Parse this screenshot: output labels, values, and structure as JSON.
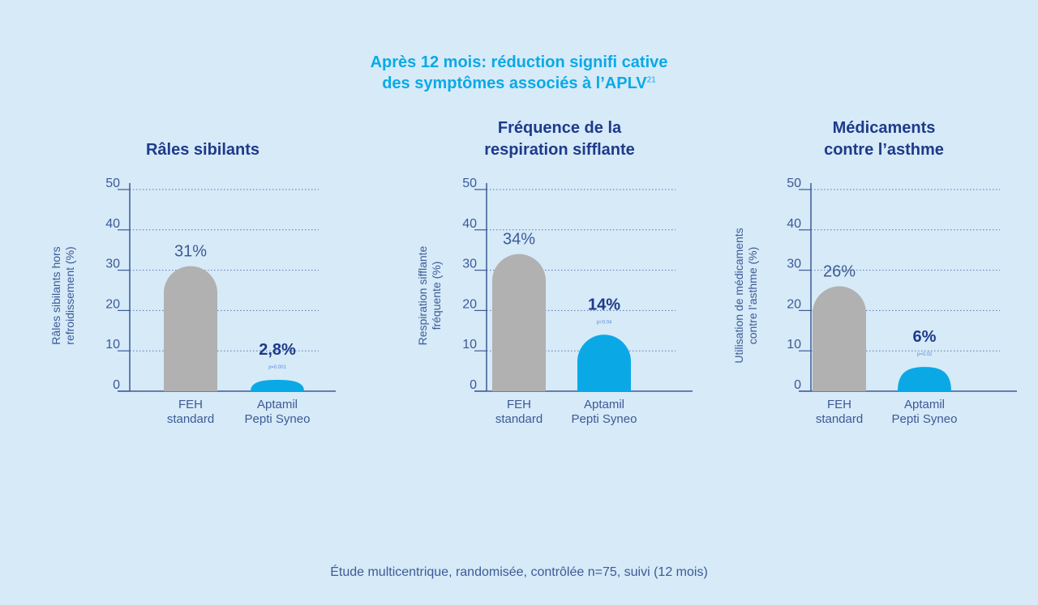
{
  "title": {
    "line1": "Après 12 mois: réduction signifi cative",
    "line2": "des symptômes associés à l’APLV",
    "superscript": "21"
  },
  "footnote": "Étude multicentrique, randomisée, contrôlée n=75, suivi (12 mois)",
  "colors": {
    "background": "#d6eaf8",
    "accent": "#0aa9e6",
    "title_dark": "#1e3a8a",
    "axis": "#3d5a96",
    "bar_standard": "#b1b1b1",
    "bar_aptamil": "#0aa9e6"
  },
  "chart_data": [
    {
      "type": "bar",
      "title": [
        "Râles sibilants"
      ],
      "ylabel": [
        "Râles sibilants hors",
        "refroidissement (%)"
      ],
      "categories": [
        [
          "FEH",
          "standard"
        ],
        [
          "Aptamil",
          "Pepti Syneo"
        ]
      ],
      "values": [
        31,
        2.8
      ],
      "value_labels": [
        "31%",
        "2,8%"
      ],
      "p_value": "p=0.001",
      "yticks": [
        0,
        10,
        20,
        30,
        40,
        50
      ],
      "ylim": [
        0,
        50
      ],
      "grid": true
    },
    {
      "type": "bar",
      "title": [
        "Fréquence de la",
        "respiration sifflante"
      ],
      "ylabel": [
        "Respiration sifflante",
        "fréquente (%)"
      ],
      "categories": [
        [
          "FEH",
          "standard"
        ],
        [
          "Aptamil",
          "Pepti Syneo"
        ]
      ],
      "values": [
        34,
        14
      ],
      "value_labels": [
        "34%",
        "14%"
      ],
      "p_value": "p=0.04",
      "yticks": [
        0,
        10,
        20,
        30,
        40,
        50
      ],
      "ylim": [
        0,
        50
      ],
      "grid": true
    },
    {
      "type": "bar",
      "title": [
        "Médicaments",
        "contre l’asthme"
      ],
      "ylabel": [
        "Utilisation de médicaments",
        "contre l’asthme (%)"
      ],
      "categories": [
        [
          "FEH",
          "standard"
        ],
        [
          "Aptamil",
          "Pepti Syneo"
        ]
      ],
      "values": [
        26,
        6
      ],
      "value_labels": [
        "26%",
        "6%"
      ],
      "p_value": "p=0.02",
      "yticks": [
        0,
        10,
        20,
        30,
        40,
        50
      ],
      "ylim": [
        0,
        50
      ],
      "grid": true
    }
  ]
}
